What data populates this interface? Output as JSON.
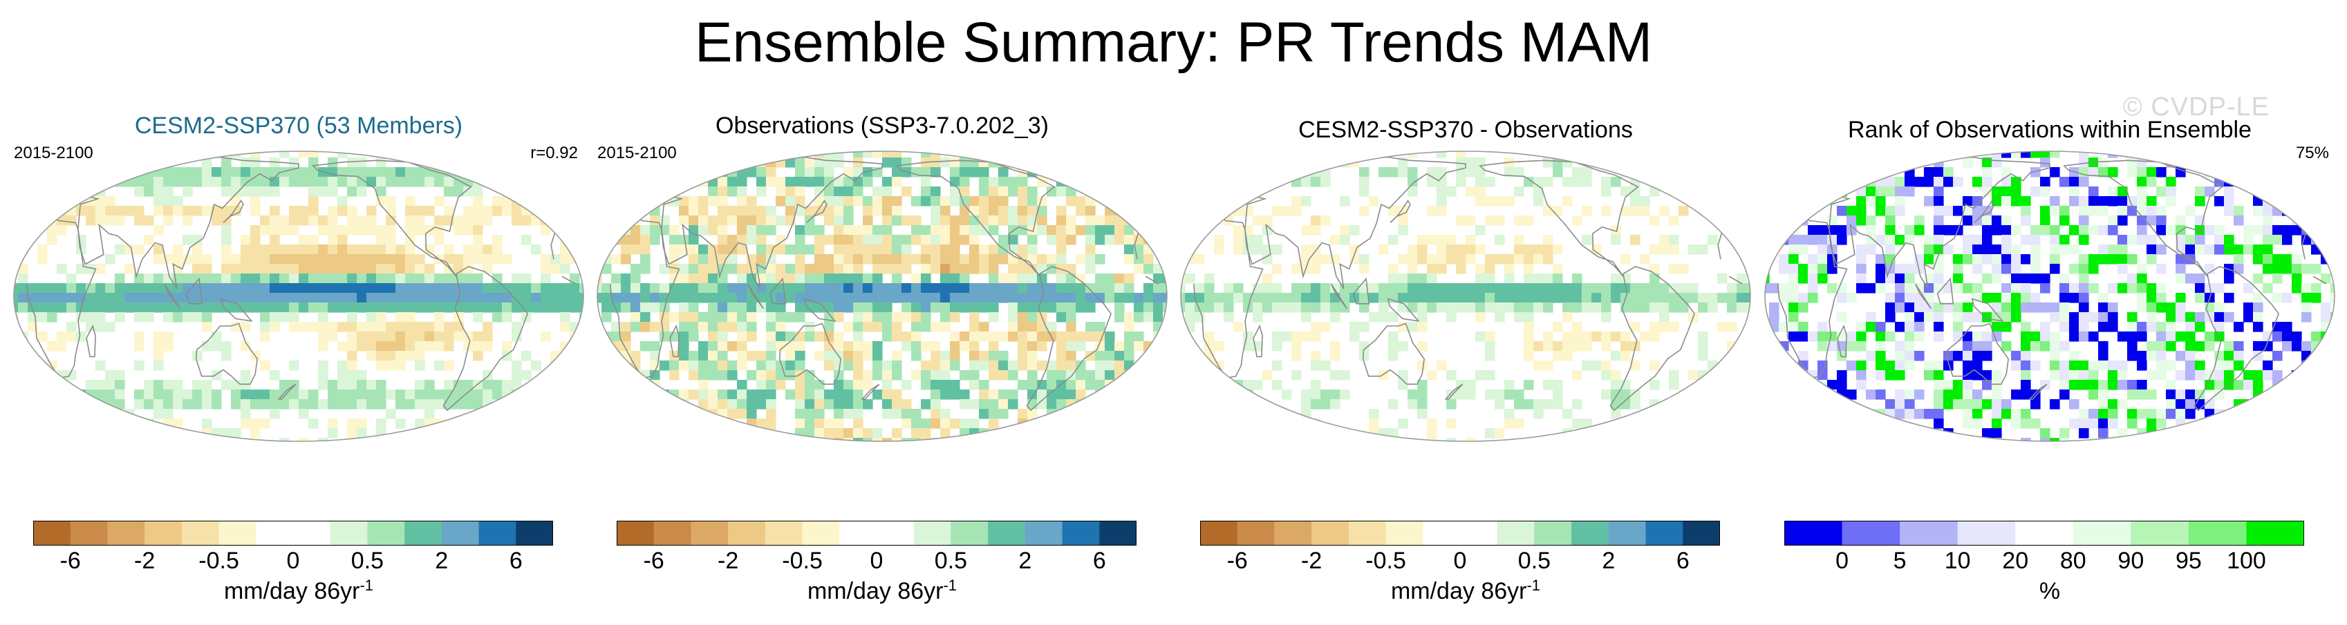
{
  "figure": {
    "title": "Ensemble Summary: PR Trends MAM",
    "watermark": "© CVDP-LE",
    "colors": {
      "title_model": "#1c6b8c",
      "coast": "#8a8a8a",
      "border": "#9a9a9a"
    }
  },
  "chart_data": [
    {
      "type": "heatmap",
      "map": "global-robinson",
      "title": "CESM2-SSP370 (53 Members)",
      "period": "2015-2100",
      "stat": "r=0.92",
      "colorbar": {
        "colors": [
          "#b36b29",
          "#c98a4a",
          "#dca865",
          "#ecc985",
          "#f6e2a8",
          "#fdf5cc",
          "#ffffff",
          "#ffffff",
          "#daf5d8",
          "#a6e4b6",
          "#62c0a2",
          "#6aa6c8",
          "#1f73b0",
          "#0d3e6b"
        ],
        "tick_labels": [
          "-6",
          "-2",
          "-0.5",
          "0",
          "0.5",
          "2",
          "6"
        ],
        "label": "mm/day 86yr",
        "label_exponent": "-1"
      }
    },
    {
      "type": "heatmap",
      "map": "global-robinson",
      "title": "Observations (SSP3-7.0.202_3)",
      "period": "2015-2100",
      "stat": "",
      "colorbar": {
        "colors": [
          "#b36b29",
          "#c98a4a",
          "#dca865",
          "#ecc985",
          "#f6e2a8",
          "#fdf5cc",
          "#ffffff",
          "#ffffff",
          "#daf5d8",
          "#a6e4b6",
          "#62c0a2",
          "#6aa6c8",
          "#1f73b0",
          "#0d3e6b"
        ],
        "tick_labels": [
          "-6",
          "-2",
          "-0.5",
          "0",
          "0.5",
          "2",
          "6"
        ],
        "label": "mm/day 86yr",
        "label_exponent": "-1"
      }
    },
    {
      "type": "heatmap",
      "map": "global-robinson",
      "title": "CESM2-SSP370 - Observations",
      "period": "",
      "stat": "",
      "colorbar": {
        "colors": [
          "#b36b29",
          "#c98a4a",
          "#dca865",
          "#ecc985",
          "#f6e2a8",
          "#fdf5cc",
          "#ffffff",
          "#ffffff",
          "#daf5d8",
          "#a6e4b6",
          "#62c0a2",
          "#6aa6c8",
          "#1f73b0",
          "#0d3e6b"
        ],
        "tick_labels": [
          "-6",
          "-2",
          "-0.5",
          "0",
          "0.5",
          "2",
          "6"
        ],
        "label": "mm/day 86yr",
        "label_exponent": "-1"
      }
    },
    {
      "type": "heatmap",
      "map": "global-robinson",
      "title": "Rank of Observations within Ensemble",
      "period": "",
      "stat": "75%",
      "colorbar": {
        "colors": [
          "#0000ee",
          "#6e6ef6",
          "#b3b3f7",
          "#e6e6fc",
          "#ffffff",
          "#e6fce6",
          "#b6f5b6",
          "#7ef07e",
          "#00ee00"
        ],
        "tick_labels": [
          "0",
          "5",
          "10",
          "20",
          "80",
          "90",
          "95",
          "100"
        ],
        "label": "%",
        "label_exponent": ""
      }
    }
  ]
}
